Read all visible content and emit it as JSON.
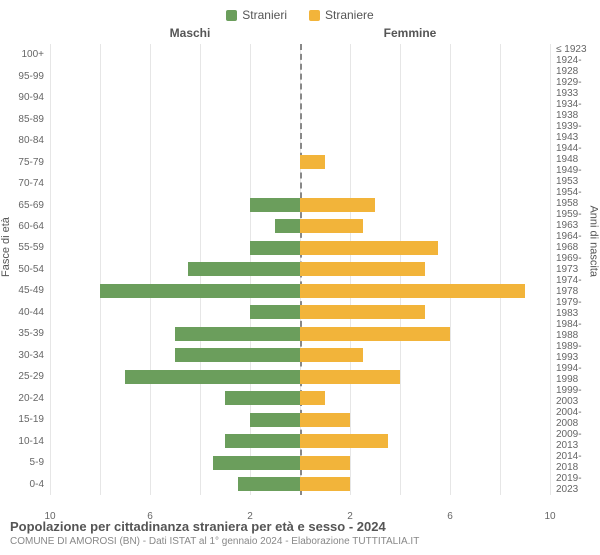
{
  "legend": {
    "male": {
      "label": "Stranieri",
      "color": "#6b9e5c"
    },
    "female": {
      "label": "Straniere",
      "color": "#f2b43a"
    }
  },
  "headers": {
    "left": "Maschi",
    "right": "Femmine"
  },
  "yaxis_left_label": "Fasce di età",
  "yaxis_right_label": "Anni di nascita",
  "grid_color": "#e6e6e6",
  "center_dash_color": "#888888",
  "background": "#ffffff",
  "xaxis": {
    "max": 10,
    "ticks": [
      10,
      6,
      2,
      2,
      6,
      10
    ]
  },
  "rows": [
    {
      "age": "100+",
      "birth": "≤ 1923",
      "m": 0,
      "f": 0
    },
    {
      "age": "95-99",
      "birth": "1924-1928",
      "m": 0,
      "f": 0
    },
    {
      "age": "90-94",
      "birth": "1929-1933",
      "m": 0,
      "f": 0
    },
    {
      "age": "85-89",
      "birth": "1934-1938",
      "m": 0,
      "f": 0
    },
    {
      "age": "80-84",
      "birth": "1939-1943",
      "m": 0,
      "f": 0
    },
    {
      "age": "75-79",
      "birth": "1944-1948",
      "m": 0,
      "f": 1
    },
    {
      "age": "70-74",
      "birth": "1949-1953",
      "m": 0,
      "f": 0
    },
    {
      "age": "65-69",
      "birth": "1954-1958",
      "m": 2,
      "f": 3
    },
    {
      "age": "60-64",
      "birth": "1959-1963",
      "m": 1,
      "f": 2.5
    },
    {
      "age": "55-59",
      "birth": "1964-1968",
      "m": 2,
      "f": 5.5
    },
    {
      "age": "50-54",
      "birth": "1969-1973",
      "m": 4.5,
      "f": 5
    },
    {
      "age": "45-49",
      "birth": "1974-1978",
      "m": 8,
      "f": 9
    },
    {
      "age": "40-44",
      "birth": "1979-1983",
      "m": 2,
      "f": 5
    },
    {
      "age": "35-39",
      "birth": "1984-1988",
      "m": 5,
      "f": 6
    },
    {
      "age": "30-34",
      "birth": "1989-1993",
      "m": 5,
      "f": 2.5
    },
    {
      "age": "25-29",
      "birth": "1994-1998",
      "m": 7,
      "f": 4
    },
    {
      "age": "20-24",
      "birth": "1999-2003",
      "m": 3,
      "f": 1
    },
    {
      "age": "15-19",
      "birth": "2004-2008",
      "m": 2,
      "f": 2
    },
    {
      "age": "10-14",
      "birth": "2009-2013",
      "m": 3,
      "f": 3.5
    },
    {
      "age": "5-9",
      "birth": "2014-2018",
      "m": 3.5,
      "f": 2
    },
    {
      "age": "0-4",
      "birth": "2019-2023",
      "m": 2.5,
      "f": 2
    }
  ],
  "footer": {
    "title": "Popolazione per cittadinanza straniera per età e sesso - 2024",
    "subtitle": "COMUNE DI AMOROSI (BN) - Dati ISTAT al 1° gennaio 2024 - Elaborazione TUTTITALIA.IT"
  }
}
